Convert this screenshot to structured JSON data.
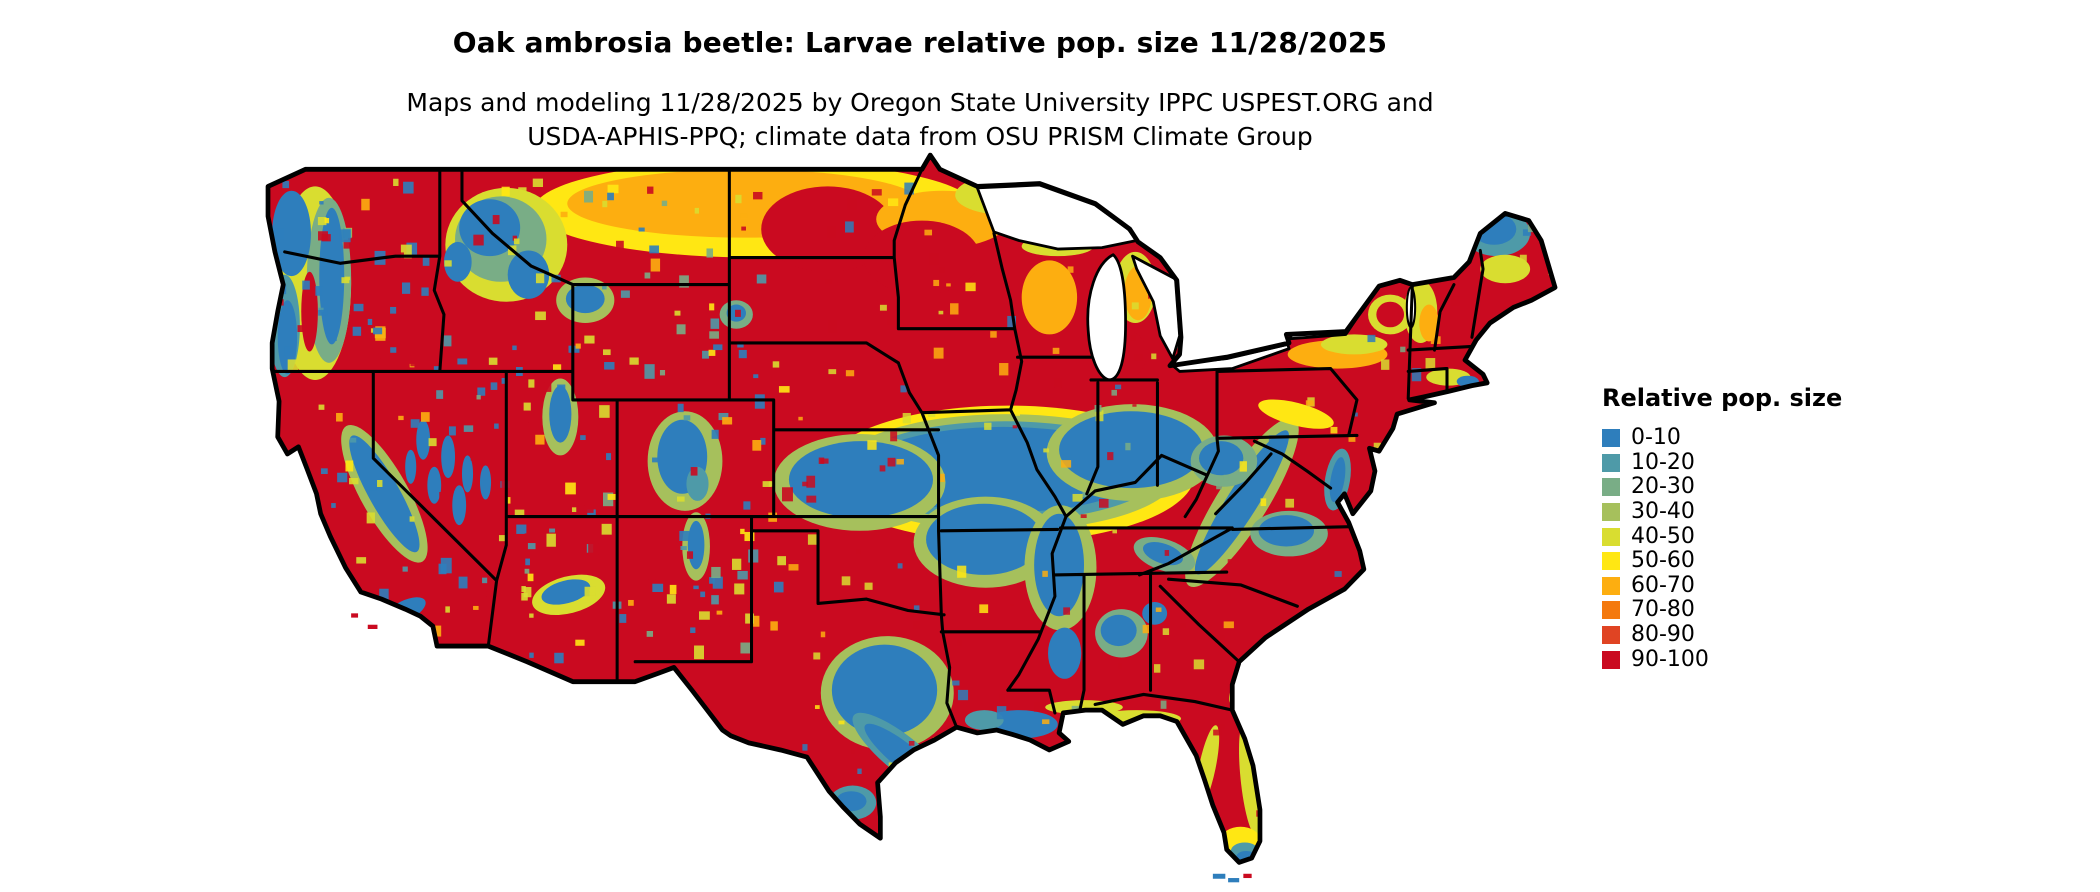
{
  "header": {
    "title": "Oak ambrosia beetle: Larvae relative pop. size 11/28/2025",
    "subtitle_line1": "Maps and modeling 11/28/2025 by Oregon State University IPPC USPEST.ORG and",
    "subtitle_line2": "USDA-APHIS-PPQ; climate data from OSU PRISM Climate Group"
  },
  "legend": {
    "title": "Relative pop. size",
    "items": [
      {
        "label": "0-10",
        "color": "#2e7ebc"
      },
      {
        "label": "10-20",
        "color": "#4e9aa8"
      },
      {
        "label": "20-30",
        "color": "#79ad86"
      },
      {
        "label": "30-40",
        "color": "#a6c05c"
      },
      {
        "label": "40-50",
        "color": "#d9dd30"
      },
      {
        "label": "50-60",
        "color": "#ffe713"
      },
      {
        "label": "60-70",
        "color": "#fdae10"
      },
      {
        "label": "70-80",
        "color": "#f4790e"
      },
      {
        "label": "80-90",
        "color": "#e04423"
      },
      {
        "label": "90-100",
        "color": "#ca0a20"
      }
    ]
  }
}
